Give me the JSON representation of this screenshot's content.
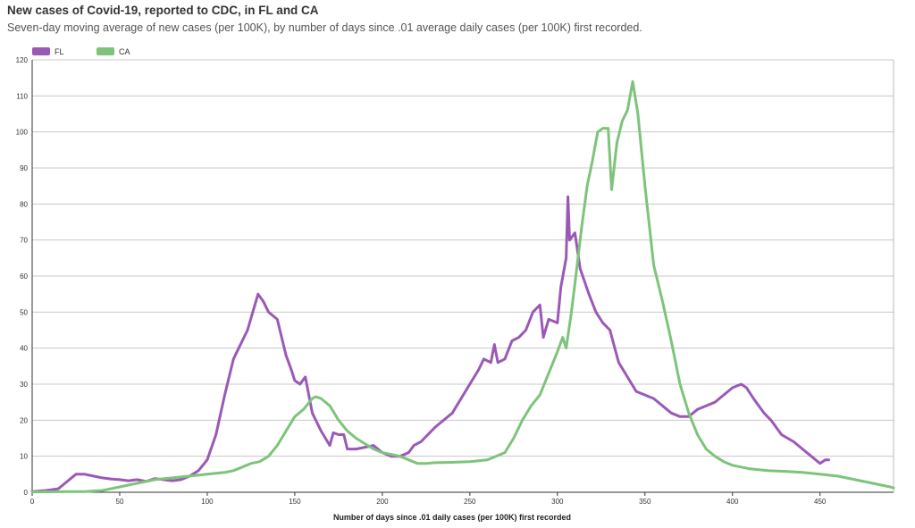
{
  "chart_data": {
    "type": "line",
    "title": "New cases of Covid-19, reported to CDC, in FL and CA",
    "subtitle": "Seven-day moving average of new cases (per 100K), by number of days since .01 average daily cases (per 100K) first recorded.",
    "xlabel": "Number of days since .01 daily cases (per 100K) first recorded",
    "ylabel": "",
    "xlim": [
      0,
      492
    ],
    "ylim": [
      0,
      120
    ],
    "xticks": [
      0,
      50,
      100,
      150,
      200,
      250,
      300,
      350,
      400,
      450
    ],
    "yticks": [
      0,
      10,
      20,
      30,
      40,
      50,
      60,
      70,
      80,
      90,
      100,
      110,
      120
    ],
    "grid": true,
    "legend_position": "top-left",
    "series": [
      {
        "name": "FL",
        "color": "#9b59b6",
        "points": [
          [
            0,
            0.2
          ],
          [
            8,
            0.5
          ],
          [
            15,
            1
          ],
          [
            20,
            3
          ],
          [
            25,
            5
          ],
          [
            30,
            5
          ],
          [
            35,
            4.5
          ],
          [
            40,
            4
          ],
          [
            45,
            3.7
          ],
          [
            50,
            3.5
          ],
          [
            55,
            3.2
          ],
          [
            60,
            3.5
          ],
          [
            65,
            3
          ],
          [
            70,
            3.8
          ],
          [
            75,
            3.5
          ],
          [
            80,
            3.2
          ],
          [
            85,
            3.5
          ],
          [
            90,
            4.5
          ],
          [
            95,
            6
          ],
          [
            100,
            9
          ],
          [
            105,
            16
          ],
          [
            110,
            27
          ],
          [
            115,
            37
          ],
          [
            120,
            42
          ],
          [
            123,
            45
          ],
          [
            126,
            50
          ],
          [
            129,
            55
          ],
          [
            132,
            53
          ],
          [
            135,
            50
          ],
          [
            140,
            48
          ],
          [
            145,
            38
          ],
          [
            148,
            34
          ],
          [
            150,
            31
          ],
          [
            153,
            30
          ],
          [
            156,
            32
          ],
          [
            160,
            22
          ],
          [
            165,
            17
          ],
          [
            170,
            13
          ],
          [
            172,
            16.5
          ],
          [
            175,
            16
          ],
          [
            178,
            16
          ],
          [
            180,
            12
          ],
          [
            185,
            12
          ],
          [
            190,
            12.5
          ],
          [
            195,
            13
          ],
          [
            200,
            11
          ],
          [
            205,
            10
          ],
          [
            210,
            10
          ],
          [
            215,
            11
          ],
          [
            218,
            13
          ],
          [
            222,
            14
          ],
          [
            230,
            18
          ],
          [
            240,
            22
          ],
          [
            245,
            26
          ],
          [
            250,
            30
          ],
          [
            255,
            34
          ],
          [
            258,
            37
          ],
          [
            262,
            36
          ],
          [
            264,
            41
          ],
          [
            266,
            36
          ],
          [
            270,
            37
          ],
          [
            274,
            42
          ],
          [
            278,
            43
          ],
          [
            282,
            45
          ],
          [
            286,
            50
          ],
          [
            290,
            52
          ],
          [
            292,
            43
          ],
          [
            295,
            48
          ],
          [
            300,
            47
          ],
          [
            302,
            57
          ],
          [
            305,
            65
          ],
          [
            306,
            82
          ],
          [
            307,
            70
          ],
          [
            310,
            72
          ],
          [
            313,
            62
          ],
          [
            318,
            55
          ],
          [
            322,
            50
          ],
          [
            326,
            47
          ],
          [
            330,
            45
          ],
          [
            335,
            36
          ],
          [
            340,
            32
          ],
          [
            345,
            28
          ],
          [
            350,
            27
          ],
          [
            355,
            26
          ],
          [
            360,
            24
          ],
          [
            365,
            22
          ],
          [
            370,
            21
          ],
          [
            375,
            21
          ],
          [
            380,
            23
          ],
          [
            385,
            24
          ],
          [
            390,
            25
          ],
          [
            395,
            27
          ],
          [
            400,
            29
          ],
          [
            405,
            30
          ],
          [
            408,
            29
          ],
          [
            412,
            26
          ],
          [
            418,
            22
          ],
          [
            422,
            20
          ],
          [
            428,
            16
          ],
          [
            435,
            14
          ],
          [
            440,
            12
          ],
          [
            445,
            10
          ],
          [
            450,
            8
          ],
          [
            453,
            9
          ],
          [
            455,
            9
          ]
        ]
      },
      {
        "name": "CA",
        "color": "#7dc47a",
        "points": [
          [
            0,
            0.1
          ],
          [
            20,
            0.2
          ],
          [
            30,
            0.2
          ],
          [
            40,
            0.5
          ],
          [
            50,
            1.5
          ],
          [
            60,
            2.5
          ],
          [
            70,
            3.5
          ],
          [
            80,
            4
          ],
          [
            90,
            4.5
          ],
          [
            100,
            5
          ],
          [
            110,
            5.5
          ],
          [
            115,
            6
          ],
          [
            120,
            7
          ],
          [
            125,
            8
          ],
          [
            130,
            8.5
          ],
          [
            135,
            10
          ],
          [
            140,
            13
          ],
          [
            145,
            17
          ],
          [
            150,
            21
          ],
          [
            155,
            23
          ],
          [
            160,
            26
          ],
          [
            162,
            26.5
          ],
          [
            165,
            26
          ],
          [
            170,
            24
          ],
          [
            175,
            20
          ],
          [
            180,
            17
          ],
          [
            185,
            15
          ],
          [
            190,
            13.5
          ],
          [
            195,
            12
          ],
          [
            200,
            11
          ],
          [
            205,
            10.5
          ],
          [
            210,
            10
          ],
          [
            215,
            9
          ],
          [
            220,
            8
          ],
          [
            225,
            8
          ],
          [
            230,
            8.2
          ],
          [
            240,
            8.3
          ],
          [
            250,
            8.5
          ],
          [
            260,
            9
          ],
          [
            270,
            11
          ],
          [
            275,
            15
          ],
          [
            280,
            20
          ],
          [
            285,
            24
          ],
          [
            290,
            27
          ],
          [
            295,
            33
          ],
          [
            300,
            39
          ],
          [
            303,
            43
          ],
          [
            305,
            40
          ],
          [
            308,
            50
          ],
          [
            311,
            62
          ],
          [
            314,
            74
          ],
          [
            317,
            85
          ],
          [
            320,
            92
          ],
          [
            323,
            100
          ],
          [
            326,
            101
          ],
          [
            329,
            101
          ],
          [
            331,
            84
          ],
          [
            334,
            97
          ],
          [
            337,
            103
          ],
          [
            340,
            106
          ],
          [
            343,
            114
          ],
          [
            346,
            105
          ],
          [
            350,
            85
          ],
          [
            355,
            63
          ],
          [
            360,
            53
          ],
          [
            365,
            42
          ],
          [
            370,
            30
          ],
          [
            375,
            22
          ],
          [
            380,
            16
          ],
          [
            385,
            12
          ],
          [
            390,
            10
          ],
          [
            395,
            8.5
          ],
          [
            400,
            7.5
          ],
          [
            410,
            6.5
          ],
          [
            420,
            6
          ],
          [
            430,
            5.8
          ],
          [
            440,
            5.5
          ],
          [
            450,
            5
          ],
          [
            460,
            4.5
          ],
          [
            470,
            3.5
          ],
          [
            480,
            2.5
          ],
          [
            490,
            1.5
          ],
          [
            492,
            1.2
          ]
        ]
      }
    ]
  }
}
